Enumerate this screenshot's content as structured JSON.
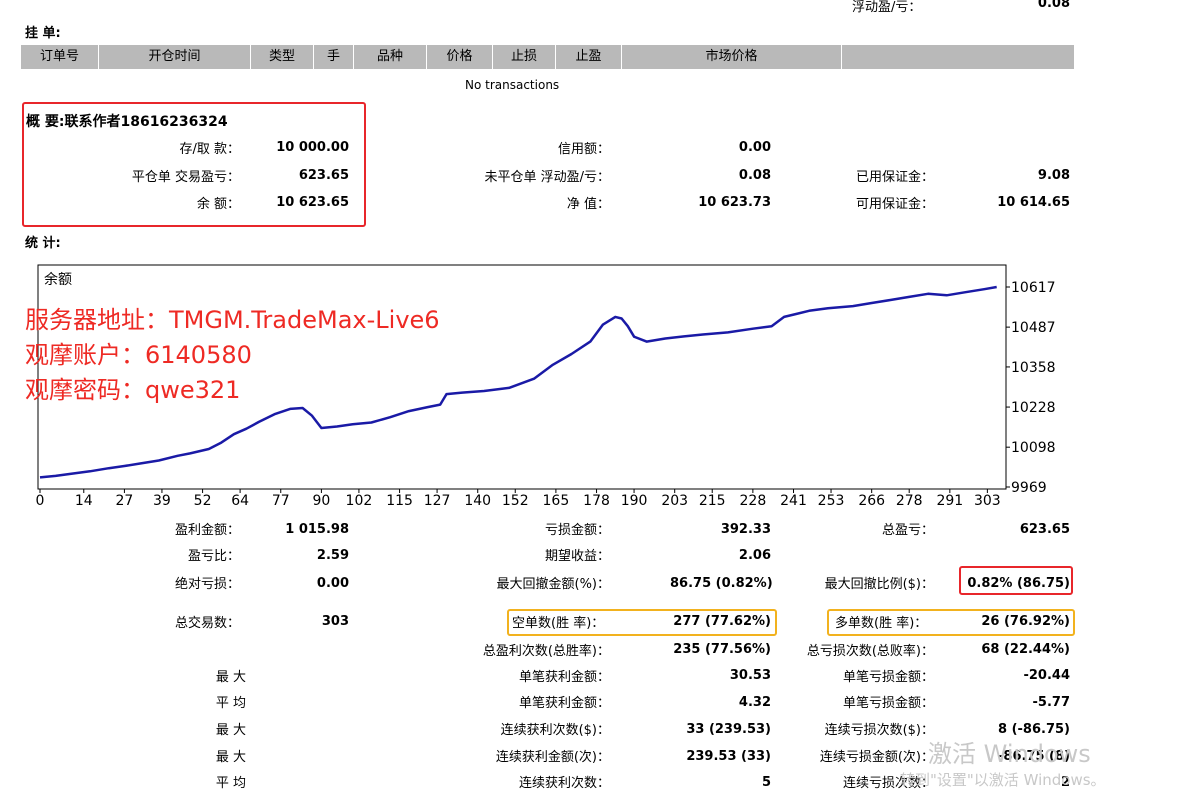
{
  "top": {
    "floating_label": "浮动盈/亏：",
    "floating_value": "0.08"
  },
  "orders": {
    "title": "挂 单:",
    "columns": [
      "订单号",
      "开仓时间",
      "类型",
      "手",
      "品种",
      "价格",
      "止损",
      "止盈",
      "市场价格",
      ""
    ],
    "empty_text": "No transactions"
  },
  "summary": {
    "title": "概 要:联系作者18616236324",
    "deposit_label": "存/取 款：",
    "deposit_value": "10 000.00",
    "credit_label": "信用额：",
    "credit_value": "0.00",
    "closed_pl_label": "平仓单 交易盈亏：",
    "closed_pl_value": "623.65",
    "open_pl_label": "未平仓单 浮动盈/亏：",
    "open_pl_value": "0.08",
    "margin_label": "已用保证金：",
    "margin_value": "9.08",
    "balance_label": "余 额：",
    "balance_value": "10 623.65",
    "equity_label": "净 值：",
    "equity_value": "10 623.73",
    "free_margin_label": "可用保证金：",
    "free_margin_value": "10 614.65"
  },
  "stats_title": "统 计:",
  "chart_data": {
    "type": "line",
    "title": "余额",
    "x_ticks": [
      0,
      14,
      27,
      39,
      52,
      64,
      77,
      90,
      102,
      115,
      127,
      140,
      152,
      165,
      178,
      190,
      203,
      215,
      228,
      241,
      253,
      266,
      278,
      291,
      303
    ],
    "y_ticks": [
      9969,
      10098,
      10228,
      10358,
      10487,
      10617
    ],
    "xlim": [
      0,
      308
    ],
    "ylim": [
      9969,
      10617
    ],
    "line_color": "#1a1aa6",
    "series": [
      {
        "x": [
          0,
          5,
          10,
          16,
          22,
          27,
          32,
          38,
          44,
          48,
          54,
          58,
          62,
          66,
          70,
          75,
          80,
          84,
          87,
          90,
          95,
          100,
          106,
          112,
          118,
          124,
          128,
          130,
          135,
          142,
          150,
          158,
          164,
          170,
          176,
          180,
          184,
          186,
          188,
          190,
          194,
          200,
          206,
          212,
          220,
          228,
          234,
          238,
          242,
          246,
          252,
          260,
          266,
          272,
          278,
          284,
          290,
          296,
          302,
          306
        ],
        "y": [
          10000,
          10005,
          10012,
          10020,
          10030,
          10037,
          10045,
          10055,
          10070,
          10078,
          10092,
          10113,
          10140,
          10158,
          10180,
          10205,
          10222,
          10225,
          10200,
          10160,
          10165,
          10172,
          10178,
          10195,
          10215,
          10228,
          10236,
          10270,
          10275,
          10280,
          10290,
          10320,
          10365,
          10400,
          10440,
          10495,
          10520,
          10515,
          10490,
          10456,
          10440,
          10450,
          10457,
          10463,
          10470,
          10482,
          10490,
          10520,
          10530,
          10540,
          10548,
          10555,
          10565,
          10575,
          10585,
          10595,
          10590,
          10600,
          10610,
          10617
        ]
      }
    ]
  },
  "overlay": {
    "server": "服务器地址：TMGM.TradeMax-Live6",
    "account": "观摩账户：6140580",
    "password": "观摩密码：qwe321"
  },
  "stats": {
    "gross_profit_label": "盈利金额：",
    "gross_profit_value": "1 015.98",
    "gross_loss_label": "亏损金额：",
    "gross_loss_value": "392.33",
    "net_profit_label": "总盈亏：",
    "net_profit_value": "623.65",
    "profit_factor_label": "盈亏比：",
    "profit_factor_value": "2.59",
    "expected_payoff_label": "期望收益：",
    "expected_payoff_value": "2.06",
    "absolute_dd_label": "绝对亏损：",
    "absolute_dd_value": "0.00",
    "max_dd_label": "最大回撤金额(%)：",
    "max_dd_value": "86.75 (0.82%)",
    "rel_dd_label": "最大回撤比例($)：",
    "rel_dd_value": "0.82% (86.75)",
    "total_trades_label": "总交易数：",
    "total_trades_value": "303",
    "short_label": "空单数(胜 率)：",
    "short_value": "277 (77.62%)",
    "long_label": "多单数(胜 率)：",
    "long_value": "26 (76.92%)",
    "profit_trades_label": "总盈利次数(总胜率)：",
    "profit_trades_value": "235 (77.56%)",
    "loss_trades_label": "总亏损次数(总败率)：",
    "loss_trades_value": "68 (22.44%)",
    "largest_row_label": "最 大",
    "largest_profit_label": "单笔获利金额：",
    "largest_profit_value": "30.53",
    "largest_loss_label": "单笔亏损金额：",
    "largest_loss_value": "-20.44",
    "average_row_label": "平 均",
    "average_profit_label": "单笔获利金额：",
    "average_profit_value": "4.32",
    "average_loss_label": "单笔亏损金额：",
    "average_loss_value": "-5.77",
    "max_row_label": "最 大",
    "max_consec_wins_label": "连续获利次数($)：",
    "max_consec_wins_value": "33 (239.53)",
    "max_consec_losses_label": "连续亏损次数($)：",
    "max_consec_losses_value": "8 (-86.75)",
    "max_row2_label": "最 大",
    "max_consec_profit_label": "连续获利金额(次)：",
    "max_consec_profit_value": "239.53 (33)",
    "max_consec_loss_label": "连续亏损金额(次)：",
    "max_consec_loss_value": "-86.75 (8)",
    "avg_row2_label": "平 均",
    "avg_consec_wins_label": "连续获利次数：",
    "avg_consec_wins_value": "5",
    "avg_consec_losses_label": "连续亏损次数：",
    "avg_consec_losses_value": "2"
  },
  "watermark": {
    "line1": "激活 Windows",
    "line2": "转到\"设置\"以激活 Windows。"
  }
}
